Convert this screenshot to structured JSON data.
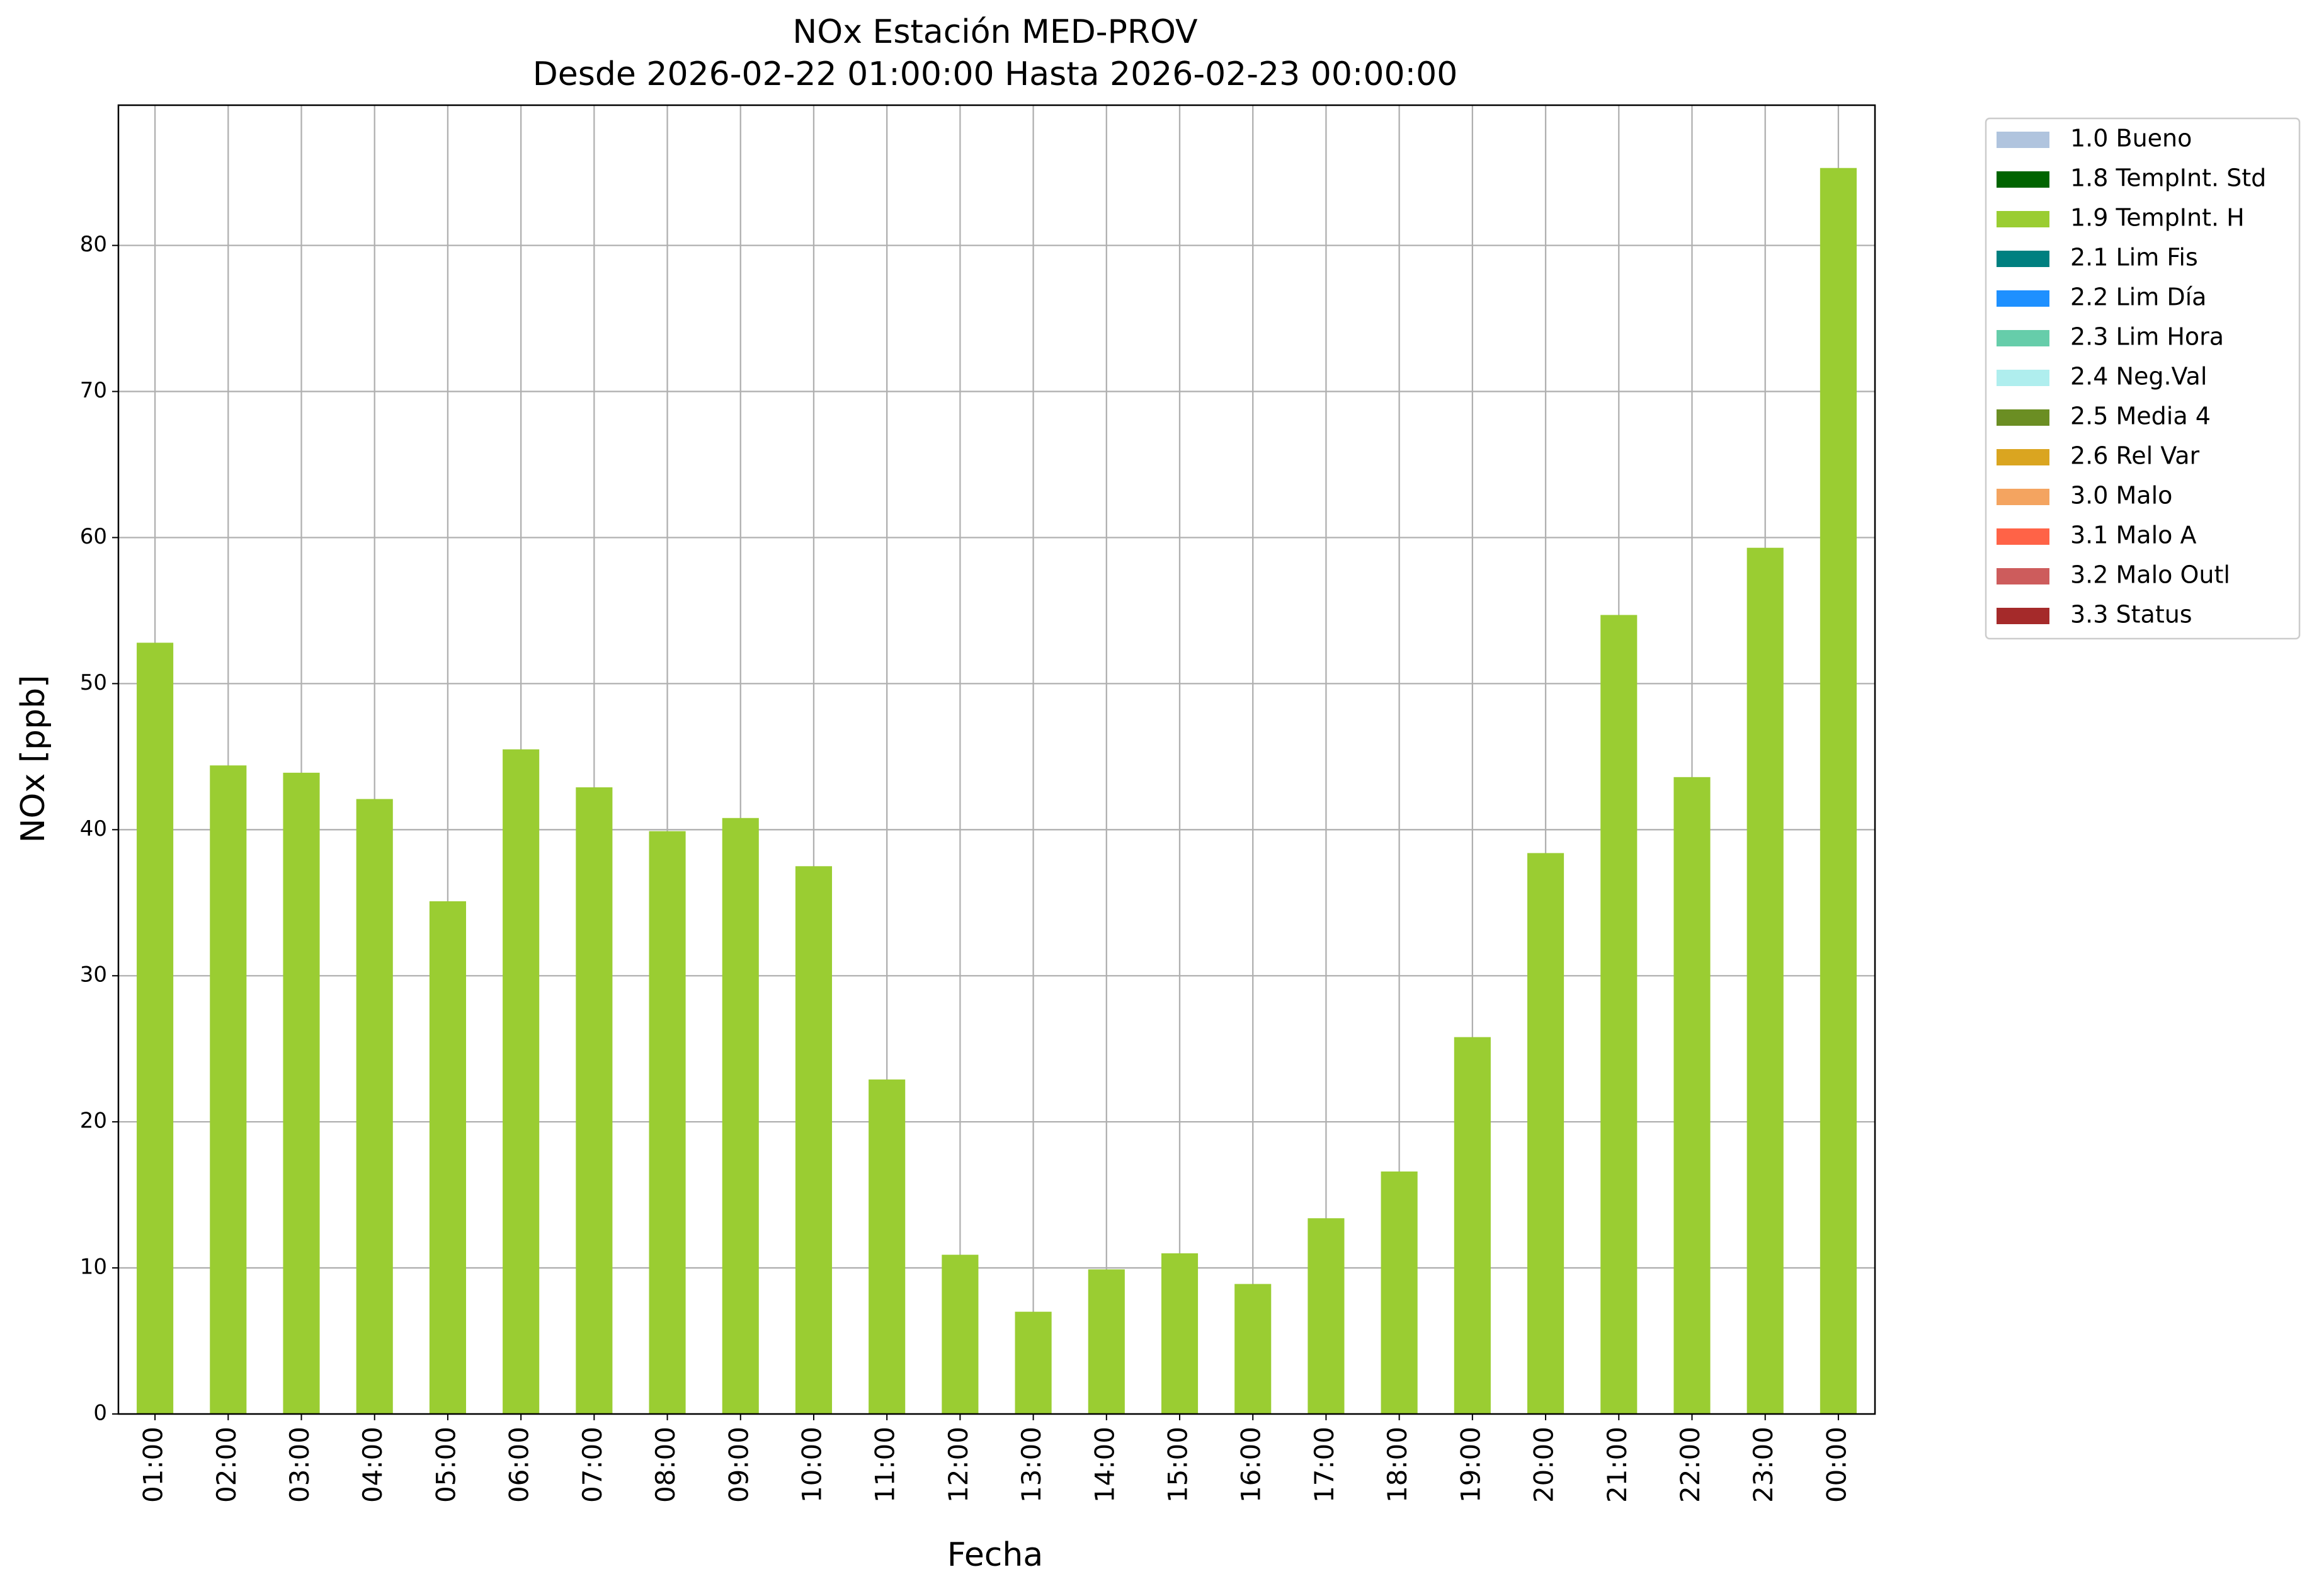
{
  "chart_data": {
    "type": "stacked_bar",
    "title": "NOx Estación MED-PROV",
    "subtitle": "Desde 2026-02-22 01:00:00 Hasta 2026-02-23 00:00:00",
    "x_label": "Fecha",
    "y_label": "NOx [ppb]",
    "categories": [
      "01:00",
      "02:00",
      "03:00",
      "04:00",
      "05:00",
      "06:00",
      "07:00",
      "08:00",
      "09:00",
      "10:00",
      "11:00",
      "12:00",
      "13:00",
      "14:00",
      "15:00",
      "16:00",
      "17:00",
      "18:00",
      "19:00",
      "20:00",
      "21:00",
      "22:00",
      "23:00",
      "00:00"
    ],
    "series": [
      {
        "name": "1.0 Bueno",
        "color": "#b0c4de",
        "values": [
          0,
          0,
          0,
          0,
          0,
          0,
          0,
          0,
          0,
          0,
          0,
          0,
          0,
          0,
          0,
          0,
          0,
          0,
          0,
          0,
          0,
          0,
          0,
          0
        ]
      },
      {
        "name": "1.8 TempInt. Std",
        "color": "#006400",
        "values": [
          0,
          0,
          0,
          0,
          0,
          0,
          0,
          0,
          0,
          0,
          0,
          0,
          0,
          0,
          0,
          0,
          0,
          0,
          0,
          0,
          0,
          0,
          0,
          0
        ]
      },
      {
        "name": "1.9 TempInt. H",
        "color": "#9acd32",
        "values": [
          52.8,
          44.4,
          43.9,
          42.1,
          35.1,
          45.5,
          42.9,
          39.9,
          40.8,
          37.5,
          22.9,
          10.9,
          7.0,
          9.9,
          11.0,
          8.9,
          13.4,
          16.6,
          25.8,
          38.4,
          54.7,
          43.6,
          59.3,
          85.3
        ]
      },
      {
        "name": "2.1 Lim Fis",
        "color": "#008080",
        "values": [
          0,
          0,
          0,
          0,
          0,
          0,
          0,
          0,
          0,
          0,
          0,
          0,
          0,
          0,
          0,
          0,
          0,
          0,
          0,
          0,
          0,
          0,
          0,
          0
        ]
      },
      {
        "name": "2.2 Lim Día",
        "color": "#1e90ff",
        "values": [
          0,
          0,
          0,
          0,
          0,
          0,
          0,
          0,
          0,
          0,
          0,
          0,
          0,
          0,
          0,
          0,
          0,
          0,
          0,
          0,
          0,
          0,
          0,
          0
        ]
      },
      {
        "name": "2.3 Lim Hora",
        "color": "#66cdaa",
        "values": [
          0,
          0,
          0,
          0,
          0,
          0,
          0,
          0,
          0,
          0,
          0,
          0,
          0,
          0,
          0,
          0,
          0,
          0,
          0,
          0,
          0,
          0,
          0,
          0
        ]
      },
      {
        "name": "2.4 Neg.Val",
        "color": "#afeeee",
        "values": [
          0,
          0,
          0,
          0,
          0,
          0,
          0,
          0,
          0,
          0,
          0,
          0,
          0,
          0,
          0,
          0,
          0,
          0,
          0,
          0,
          0,
          0,
          0,
          0
        ]
      },
      {
        "name": "2.5 Media 4",
        "color": "#6b8e23",
        "values": [
          0,
          0,
          0,
          0,
          0,
          0,
          0,
          0,
          0,
          0,
          0,
          0,
          0,
          0,
          0,
          0,
          0,
          0,
          0,
          0,
          0,
          0,
          0,
          0
        ]
      },
      {
        "name": "2.6 Rel Var",
        "color": "#daa520",
        "values": [
          0,
          0,
          0,
          0,
          0,
          0,
          0,
          0,
          0,
          0,
          0,
          0,
          0,
          0,
          0,
          0,
          0,
          0,
          0,
          0,
          0,
          0,
          0,
          0
        ]
      },
      {
        "name": "3.0 Malo",
        "color": "#f4a460",
        "values": [
          0,
          0,
          0,
          0,
          0,
          0,
          0,
          0,
          0,
          0,
          0,
          0,
          0,
          0,
          0,
          0,
          0,
          0,
          0,
          0,
          0,
          0,
          0,
          0
        ]
      },
      {
        "name": "3.1 Malo A",
        "color": "#ff6347",
        "values": [
          0,
          0,
          0,
          0,
          0,
          0,
          0,
          0,
          0,
          0,
          0,
          0,
          0,
          0,
          0,
          0,
          0,
          0,
          0,
          0,
          0,
          0,
          0,
          0
        ]
      },
      {
        "name": "3.2 Malo Outl",
        "color": "#cd5c5c",
        "values": [
          0,
          0,
          0,
          0,
          0,
          0,
          0,
          0,
          0,
          0,
          0,
          0,
          0,
          0,
          0,
          0,
          0,
          0,
          0,
          0,
          0,
          0,
          0,
          0
        ]
      },
      {
        "name": "3.3 Status",
        "color": "#a52a2a",
        "values": [
          0,
          0,
          0,
          0,
          0,
          0,
          0,
          0,
          0,
          0,
          0,
          0,
          0,
          0,
          0,
          0,
          0,
          0,
          0,
          0,
          0,
          0,
          0,
          0
        ]
      }
    ],
    "ylim": [
      0,
      89.6
    ],
    "yticks": [
      0,
      10,
      20,
      30,
      40,
      50,
      60,
      70,
      80
    ],
    "grid": true,
    "legend": "outside-upper-right"
  }
}
